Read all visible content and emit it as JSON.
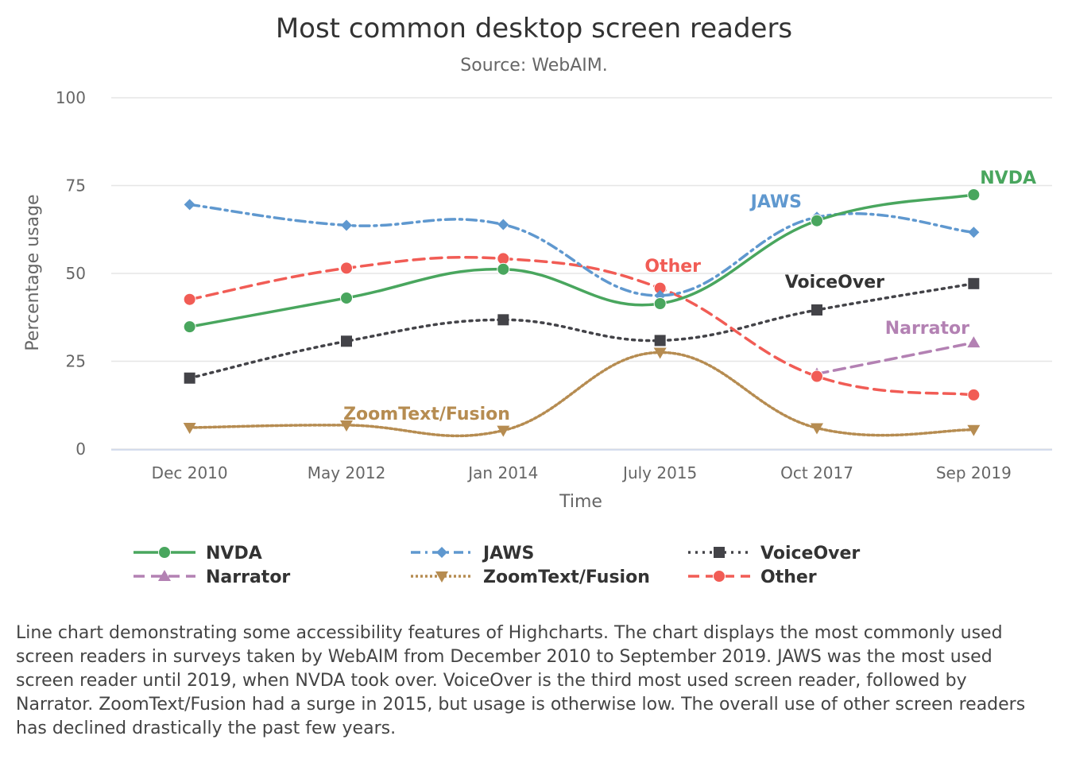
{
  "chart_data": {
    "type": "line",
    "title": "Most common desktop screen readers",
    "subtitle": "Source: WebAIM.",
    "xlabel": "Time",
    "ylabel": "Percentage usage",
    "categories": [
      "Dec 2010",
      "May 2012",
      "Jan 2014",
      "July 2015",
      "Oct 2017",
      "Sep 2019"
    ],
    "ylim": [
      0,
      100
    ],
    "yticks": [
      0,
      25,
      50,
      75,
      100
    ],
    "grid": true,
    "legend_position": "bottom",
    "series": [
      {
        "name": "NVDA",
        "color": "#49a65e",
        "dash": "solid",
        "marker": "circle",
        "values": [
          34.8,
          43.0,
          51.2,
          41.4,
          65.0,
          72.4
        ],
        "label": "NVDA"
      },
      {
        "name": "JAWS",
        "color": "#5f98cf",
        "dash": "dashdot",
        "marker": "diamond",
        "values": [
          69.6,
          63.7,
          63.9,
          43.7,
          66.0,
          61.7
        ],
        "label": "JAWS"
      },
      {
        "name": "VoiceOver",
        "color": "#434348",
        "dash": "dot",
        "marker": "square",
        "values": [
          20.2,
          30.7,
          36.8,
          30.9,
          39.6,
          47.1
        ],
        "label": "VoiceOver"
      },
      {
        "name": "Narrator",
        "color": "#b381b3",
        "dash": "dash",
        "marker": "triangle",
        "values": [
          null,
          null,
          null,
          null,
          21.4,
          30.3
        ],
        "label": "Narrator"
      },
      {
        "name": "ZoomText/Fusion",
        "color": "#b68c51",
        "dash": "shortdot",
        "marker": "triangle-down",
        "values": [
          6.1,
          6.8,
          5.3,
          27.5,
          6.0,
          5.5
        ],
        "label": "ZoomText/Fusion"
      },
      {
        "name": "Other",
        "color": "#f15c55",
        "dash": "dash",
        "marker": "circle",
        "values": [
          42.6,
          51.5,
          54.2,
          45.8,
          20.7,
          15.4
        ],
        "label": "Other"
      }
    ]
  },
  "description": "Line chart demonstrating some accessibility features of Highcharts. The chart displays the most commonly used screen readers in surveys taken by WebAIM from December 2010 to September 2019. JAWS was the most used screen reader until 2019, when NVDA took over. VoiceOver is the third most used screen reader, followed by Narrator. ZoomText/Fusion had a surge in 2015, but usage is otherwise low. The overall use of other screen readers has declined drastically the past few years."
}
